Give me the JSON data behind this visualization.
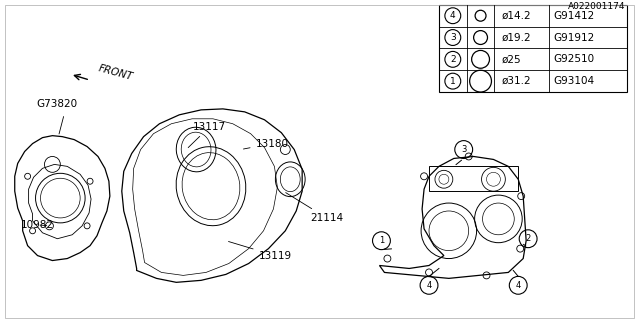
{
  "background_color": "#ffffff",
  "border_color": "#000000",
  "diagram_id": "A022001174",
  "table": {
    "rows": [
      {
        "num": "1",
        "size": "ø31.2",
        "code": "G93104"
      },
      {
        "num": "2",
        "size": "ø25",
        "code": "G92510"
      },
      {
        "num": "3",
        "size": "ø19.2",
        "code": "G91912"
      },
      {
        "num": "4",
        "size": "ø14.2",
        "code": "G91412"
      }
    ]
  },
  "line_color": "#000000",
  "font_size": 7.5,
  "circle_radii": [
    11,
    9,
    7,
    5.5
  ]
}
